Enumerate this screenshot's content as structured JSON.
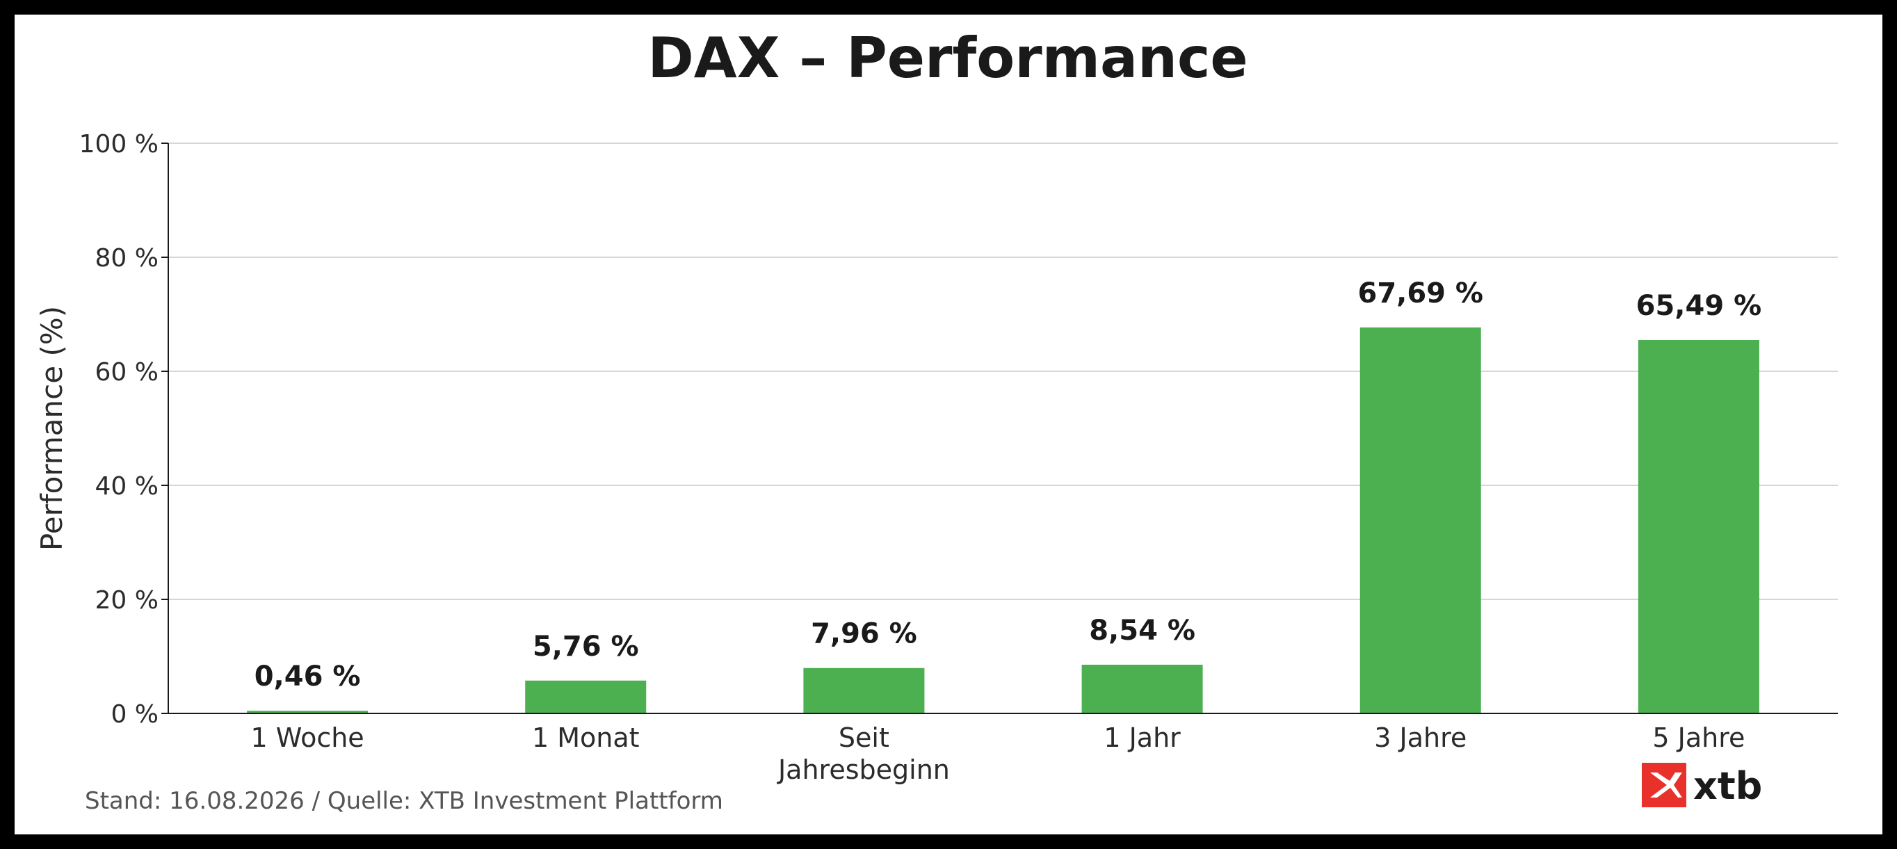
{
  "chart_data": {
    "type": "bar",
    "title": "DAX – Performance",
    "ylabel": "Performance (%)",
    "xlabel": "",
    "categories": [
      "1 Woche",
      "1 Monat",
      "Seit Jahresbeginn",
      "1 Jahr",
      "3 Jahre",
      "5 Jahre"
    ],
    "values": [
      0.46,
      5.76,
      7.96,
      8.54,
      67.69,
      65.49
    ],
    "value_labels": [
      "0,46 %",
      "5,76 %",
      "7,96 %",
      "8,54 %",
      "67,69 %",
      "65,49 %"
    ],
    "ylim": [
      0,
      100
    ],
    "yticks": [
      0,
      20,
      40,
      60,
      80,
      100
    ],
    "ytick_labels": [
      "0 %",
      "20 %",
      "40 %",
      "60 %",
      "80 %",
      "100 %"
    ],
    "grid": true,
    "bar_color": "#4caf50"
  },
  "footer": {
    "source": "Stand: 16.08.2026 / Quelle: XTB Investment Plattform"
  },
  "brand": {
    "name": "xtb",
    "accent": "#e8312a",
    "icon": "xtb-logo-icon"
  }
}
